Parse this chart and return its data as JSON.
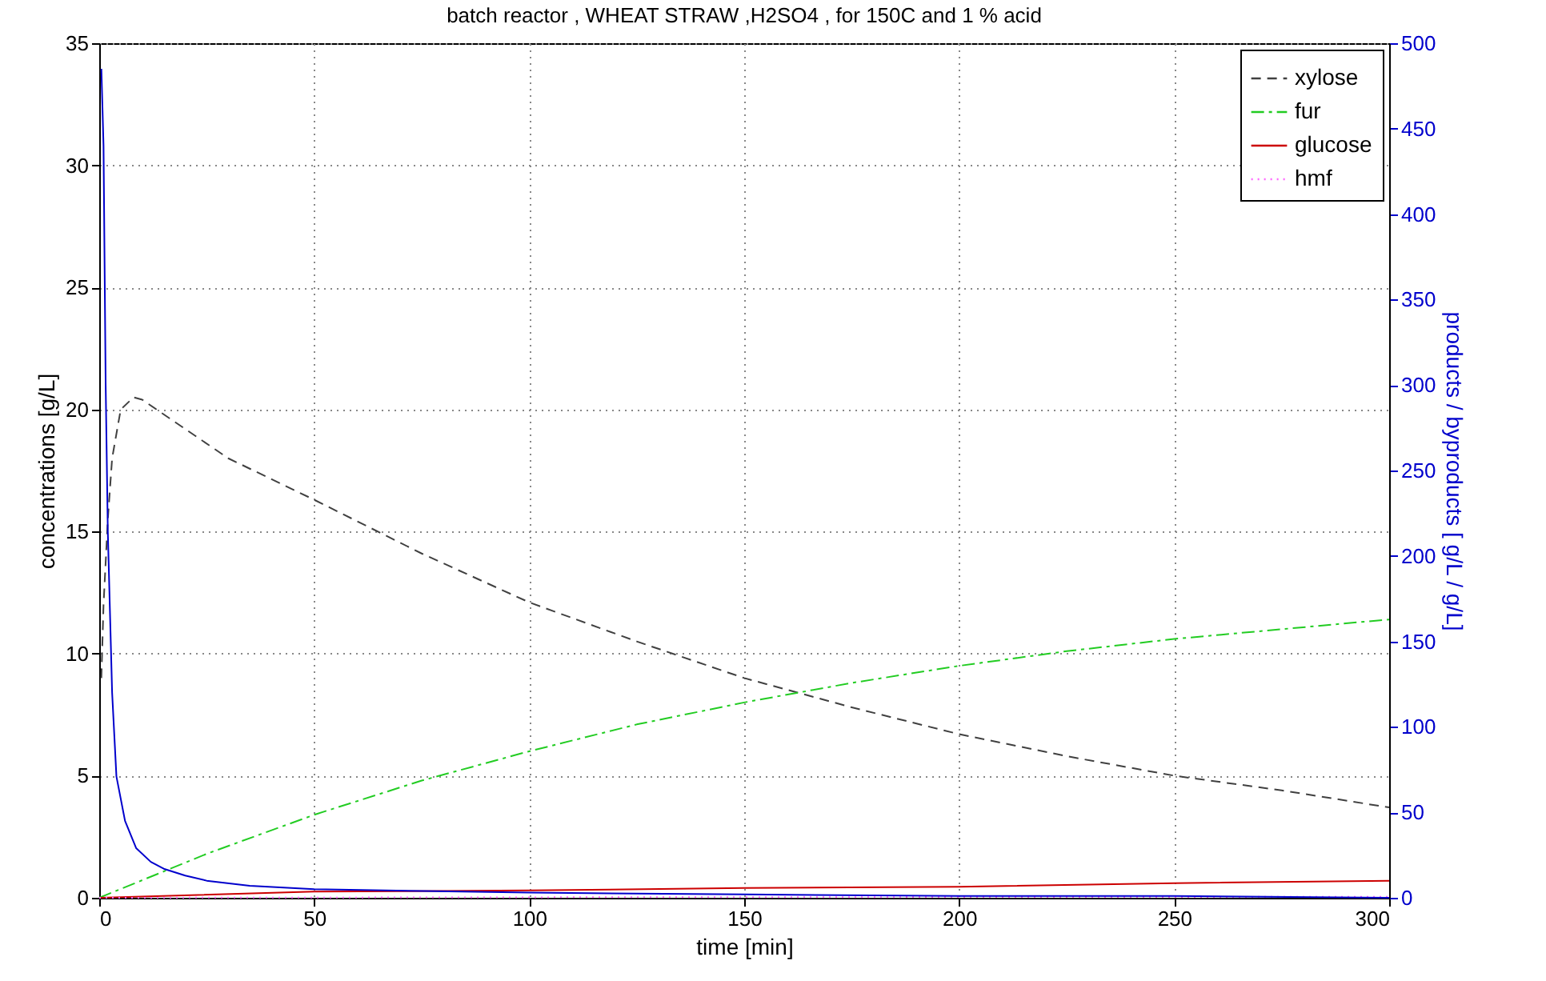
{
  "chart_data": {
    "type": "line",
    "title": "batch reactor , WHEAT STRAW ,H2SO4 , for 150C and 1 % acid",
    "xlabel": "time [min]",
    "ylabel": "concentrations [g/L]",
    "y2label": "products / byproducts [ g/L / g/L]",
    "xlim": [
      0,
      300
    ],
    "xticks": [
      0,
      50,
      100,
      150,
      200,
      250,
      300
    ],
    "ylim": [
      0,
      35
    ],
    "yticks": [
      0,
      5,
      10,
      15,
      20,
      25,
      30,
      35
    ],
    "y2lim": [
      0,
      500
    ],
    "y2ticks": [
      0,
      50,
      100,
      150,
      200,
      250,
      300,
      350,
      400,
      450,
      500
    ],
    "grid": true,
    "legend": "top right",
    "marker": "none",
    "series": [
      {
        "name": "xylose",
        "color": "#404040",
        "line_style": "dashed",
        "x": [
          0.5,
          1,
          2,
          3,
          5,
          8,
          10,
          20,
          30,
          50,
          75,
          100,
          125,
          150,
          175,
          200,
          225,
          250,
          275,
          300
        ],
        "values": [
          9,
          12,
          15.5,
          18,
          20,
          20.5,
          20.4,
          19.2,
          18,
          16.3,
          14.1,
          12.1,
          10.5,
          9,
          7.8,
          6.7,
          5.8,
          5,
          4.4,
          3.7
        ]
      },
      {
        "name": "fur",
        "color": "#22cc22",
        "line_style": "dashdot",
        "x": [
          0,
          25,
          50,
          75,
          100,
          125,
          150,
          175,
          200,
          225,
          250,
          275,
          300
        ],
        "values": [
          0,
          1.8,
          3.4,
          4.8,
          6,
          7.1,
          8,
          8.8,
          9.5,
          10.1,
          10.6,
          11,
          11.4
        ]
      },
      {
        "name": "glucose",
        "color": "#cc0000",
        "line_style": "solid",
        "x": [
          0,
          50,
          100,
          150,
          200,
          250,
          300
        ],
        "values": [
          0,
          0.25,
          0.3,
          0.4,
          0.45,
          0.6,
          0.7
        ]
      },
      {
        "name": "hmf",
        "color": "#ff66ff",
        "line_style": "dotted",
        "x": [
          0,
          100,
          200,
          300
        ],
        "values": [
          0,
          0.02,
          0.03,
          0.04
        ]
      },
      {
        "color": "#0000cc",
        "line_style": "solid",
        "axis": "y2",
        "x": [
          0.5,
          1,
          1.5,
          2,
          3,
          4,
          6,
          8.6,
          12,
          15,
          20,
          25,
          35,
          50,
          75,
          100,
          150,
          200,
          250,
          300
        ],
        "values": [
          485,
          440,
          300,
          214,
          120,
          71,
          45,
          29,
          21,
          17,
          13,
          10,
          7,
          5,
          4,
          3,
          2,
          1,
          1,
          0
        ]
      }
    ]
  }
}
